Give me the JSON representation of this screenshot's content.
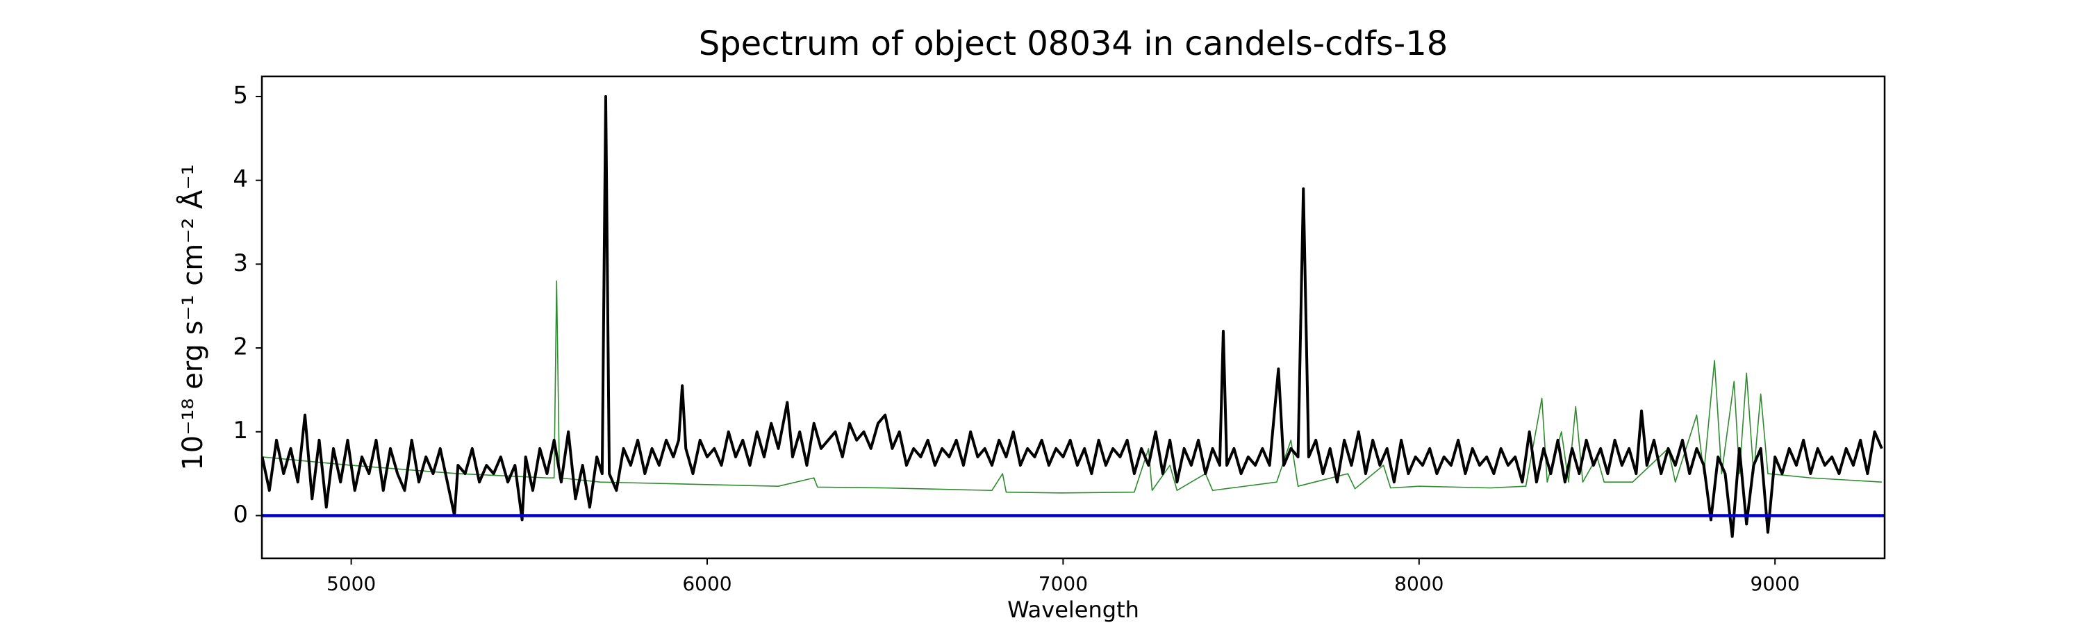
{
  "chart_data": {
    "type": "line",
    "title": "Spectrum of object 08034 in candels-cdfs-18",
    "xlabel": "Wavelength",
    "ylabel": "10⁻¹⁸ erg s⁻¹ cm⁻² Å⁻¹",
    "xlim": [
      4749,
      9308
    ],
    "ylim": [
      -0.51,
      5.24
    ],
    "xticks": [
      5000,
      6000,
      7000,
      8000,
      9000
    ],
    "yticks": [
      0,
      1,
      2,
      3,
      4,
      5
    ],
    "series": [
      {
        "color": "#2e8b2e",
        "width": 1.6,
        "x": [
          4750,
          5000,
          5300,
          5550,
          5570,
          5577,
          5585,
          5700,
          5900,
          6000,
          6200,
          6300,
          6310,
          6500,
          6600,
          6800,
          6830,
          6840,
          7000,
          7200,
          7240,
          7250,
          7300,
          7320,
          7400,
          7420,
          7600,
          7640,
          7660,
          7800,
          7820,
          7900,
          7920,
          8000,
          8200,
          8300,
          8345,
          8360,
          8400,
          8420,
          8440,
          8460,
          8500,
          8520,
          8600,
          8700,
          8720,
          8780,
          8800,
          8830,
          8850,
          8885,
          8900,
          8920,
          8940,
          8960,
          8980,
          9100,
          9300
        ],
        "values": [
          0.7,
          0.6,
          0.5,
          0.45,
          0.45,
          2.8,
          0.45,
          0.4,
          0.38,
          0.37,
          0.35,
          0.45,
          0.34,
          0.33,
          0.32,
          0.3,
          0.5,
          0.28,
          0.27,
          0.28,
          0.8,
          0.3,
          0.6,
          0.3,
          0.5,
          0.3,
          0.4,
          0.9,
          0.35,
          0.5,
          0.32,
          0.6,
          0.33,
          0.35,
          0.33,
          0.35,
          1.4,
          0.4,
          1.0,
          0.4,
          1.3,
          0.4,
          0.7,
          0.4,
          0.4,
          0.8,
          0.4,
          1.2,
          0.5,
          1.85,
          0.5,
          1.6,
          0.5,
          1.7,
          0.5,
          1.45,
          0.5,
          0.45,
          0.4
        ]
      },
      {
        "color": "#000000",
        "width": 4,
        "x": [
          4750,
          4770,
          4790,
          4810,
          4830,
          4850,
          4870,
          4890,
          4910,
          4930,
          4950,
          4970,
          4990,
          5010,
          5030,
          5050,
          5070,
          5090,
          5110,
          5130,
          5150,
          5170,
          5190,
          5210,
          5230,
          5250,
          5270,
          5290,
          5300,
          5320,
          5340,
          5360,
          5380,
          5400,
          5420,
          5440,
          5460,
          5480,
          5490,
          5510,
          5530,
          5550,
          5570,
          5590,
          5610,
          5630,
          5650,
          5670,
          5690,
          5705,
          5715,
          5725,
          5745,
          5765,
          5785,
          5805,
          5825,
          5845,
          5865,
          5885,
          5905,
          5920,
          5930,
          5940,
          5960,
          5980,
          6000,
          6020,
          6040,
          6060,
          6080,
          6100,
          6120,
          6140,
          6160,
          6180,
          6200,
          6225,
          6240,
          6260,
          6280,
          6300,
          6320,
          6340,
          6360,
          6380,
          6400,
          6420,
          6440,
          6460,
          6480,
          6500,
          6520,
          6540,
          6560,
          6580,
          6600,
          6620,
          6640,
          6660,
          6680,
          6700,
          6720,
          6740,
          6760,
          6780,
          6800,
          6820,
          6840,
          6860,
          6880,
          6900,
          6920,
          6940,
          6960,
          6980,
          7000,
          7020,
          7040,
          7060,
          7080,
          7100,
          7120,
          7140,
          7160,
          7180,
          7200,
          7220,
          7240,
          7260,
          7280,
          7300,
          7320,
          7340,
          7360,
          7380,
          7400,
          7420,
          7440,
          7450,
          7460,
          7480,
          7500,
          7520,
          7540,
          7560,
          7580,
          7605,
          7620,
          7640,
          7660,
          7675,
          7690,
          7710,
          7730,
          7750,
          7770,
          7790,
          7810,
          7830,
          7850,
          7870,
          7890,
          7910,
          7930,
          7950,
          7970,
          7990,
          8010,
          8030,
          8050,
          8070,
          8090,
          8110,
          8130,
          8150,
          8170,
          8190,
          8210,
          8230,
          8250,
          8270,
          8290,
          8310,
          8330,
          8350,
          8370,
          8390,
          8410,
          8430,
          8450,
          8470,
          8490,
          8510,
          8530,
          8550,
          8570,
          8590,
          8610,
          8625,
          8640,
          8660,
          8680,
          8700,
          8720,
          8740,
          8760,
          8780,
          8800,
          8820,
          8840,
          8860,
          8880,
          8900,
          8920,
          8940,
          8960,
          8980,
          9000,
          9020,
          9040,
          9060,
          9080,
          9100,
          9120,
          9140,
          9160,
          9180,
          9200,
          9220,
          9240,
          9260,
          9280,
          9300
        ],
        "values": [
          0.7,
          0.3,
          0.9,
          0.5,
          0.8,
          0.4,
          1.2,
          0.2,
          0.9,
          0.1,
          0.8,
          0.4,
          0.9,
          0.3,
          0.7,
          0.5,
          0.9,
          0.3,
          0.8,
          0.5,
          0.3,
          0.9,
          0.4,
          0.7,
          0.5,
          0.8,
          0.4,
          0.0,
          0.6,
          0.5,
          0.8,
          0.4,
          0.6,
          0.5,
          0.7,
          0.4,
          0.6,
          -0.05,
          0.7,
          0.3,
          0.8,
          0.5,
          0.9,
          0.4,
          1.0,
          0.2,
          0.6,
          0.1,
          0.7,
          0.5,
          5.0,
          0.5,
          0.3,
          0.8,
          0.6,
          0.9,
          0.5,
          0.8,
          0.6,
          0.9,
          0.7,
          0.9,
          1.55,
          0.8,
          0.5,
          0.9,
          0.7,
          0.8,
          0.6,
          1.0,
          0.7,
          0.9,
          0.6,
          1.0,
          0.7,
          1.1,
          0.8,
          1.35,
          0.7,
          1.0,
          0.6,
          1.1,
          0.8,
          0.9,
          1.0,
          0.7,
          1.1,
          0.9,
          1.0,
          0.8,
          1.1,
          1.2,
          0.8,
          1.0,
          0.6,
          0.8,
          0.7,
          0.9,
          0.6,
          0.8,
          0.7,
          0.9,
          0.6,
          1.0,
          0.7,
          0.8,
          0.6,
          0.9,
          0.7,
          1.0,
          0.6,
          0.8,
          0.7,
          0.9,
          0.6,
          0.8,
          0.7,
          0.9,
          0.6,
          0.8,
          0.5,
          0.9,
          0.6,
          0.8,
          0.7,
          0.9,
          0.5,
          0.8,
          0.6,
          1.0,
          0.5,
          0.9,
          0.4,
          0.8,
          0.6,
          0.9,
          0.5,
          0.8,
          0.6,
          2.2,
          0.6,
          0.8,
          0.5,
          0.7,
          0.6,
          0.8,
          0.6,
          1.75,
          0.6,
          0.8,
          0.7,
          3.9,
          0.7,
          0.9,
          0.5,
          0.8,
          0.4,
          0.9,
          0.6,
          1.0,
          0.5,
          0.9,
          0.6,
          0.8,
          0.4,
          0.9,
          0.5,
          0.7,
          0.6,
          0.8,
          0.5,
          0.7,
          0.6,
          0.9,
          0.5,
          0.8,
          0.6,
          0.7,
          0.5,
          0.8,
          0.6,
          0.7,
          0.4,
          1.0,
          0.4,
          0.8,
          0.5,
          0.9,
          0.4,
          0.8,
          0.5,
          0.9,
          0.6,
          0.8,
          0.5,
          0.9,
          0.6,
          0.8,
          0.5,
          1.25,
          0.6,
          0.9,
          0.5,
          0.8,
          0.6,
          0.9,
          0.5,
          0.8,
          0.6,
          -0.05,
          0.7,
          0.5,
          -0.25,
          0.8,
          -0.1,
          0.6,
          0.8,
          -0.2,
          0.7,
          0.5,
          0.8,
          0.6,
          0.9,
          0.5,
          0.8,
          0.6,
          0.7,
          0.5,
          0.8,
          0.6,
          0.9,
          0.5,
          1.0,
          0.8
        ]
      },
      {
        "color": "#0000cc",
        "width": 4.5,
        "x": [
          4749,
          9308
        ],
        "values": [
          0,
          0
        ]
      }
    ]
  }
}
